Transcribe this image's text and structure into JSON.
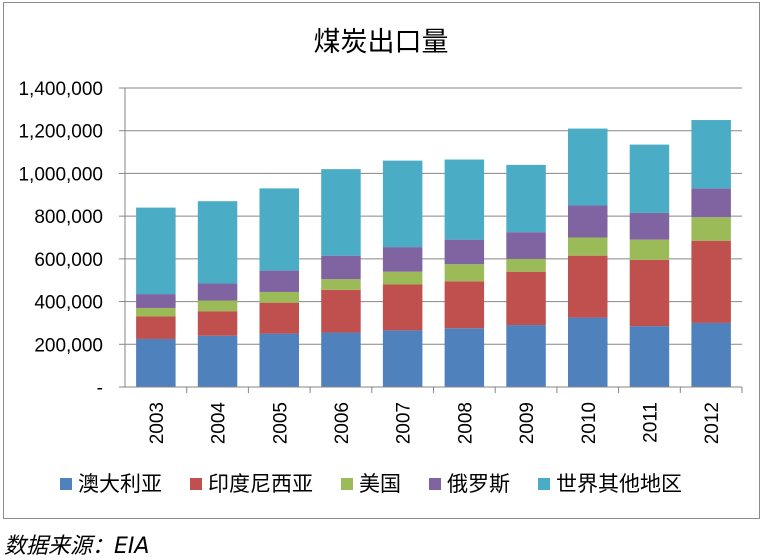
{
  "chart_data": {
    "type": "bar",
    "stacked": true,
    "title": "煤炭出口量",
    "categories": [
      "2003",
      "2004",
      "2005",
      "2006",
      "2007",
      "2008",
      "2009",
      "2010",
      "2011",
      "2012"
    ],
    "series": [
      {
        "name": "澳大利亚",
        "color": "#4f81bd",
        "values": [
          225000,
          240000,
          250000,
          255000,
          265000,
          275000,
          290000,
          325000,
          285000,
          300000
        ]
      },
      {
        "name": "印度尼西亚",
        "color": "#c0504d",
        "values": [
          105000,
          115000,
          145000,
          200000,
          215000,
          220000,
          250000,
          290000,
          310000,
          385000
        ]
      },
      {
        "name": "美国",
        "color": "#9bbb59",
        "values": [
          40000,
          50000,
          50000,
          50000,
          60000,
          80000,
          60000,
          85000,
          95000,
          110000
        ]
      },
      {
        "name": "俄罗斯",
        "color": "#8064a2",
        "values": [
          65000,
          80000,
          100000,
          110000,
          115000,
          115000,
          125000,
          150000,
          125000,
          135000
        ]
      },
      {
        "name": "世界其他地区",
        "color": "#4bacc6",
        "values": [
          405000,
          385000,
          385000,
          405000,
          405000,
          375000,
          315000,
          360000,
          320000,
          320000
        ]
      }
    ],
    "ylim": [
      0,
      1400000
    ],
    "yticks": [
      0,
      200000,
      400000,
      600000,
      800000,
      1000000,
      1200000,
      1400000
    ],
    "ytick_labels": [
      "-",
      "200,000",
      "400,000",
      "600,000",
      "800,000",
      "1,000,000",
      "1,200,000",
      "1,400,000"
    ],
    "grid": true,
    "legend_position": "bottom"
  },
  "source_note": "数据来源：EIA"
}
